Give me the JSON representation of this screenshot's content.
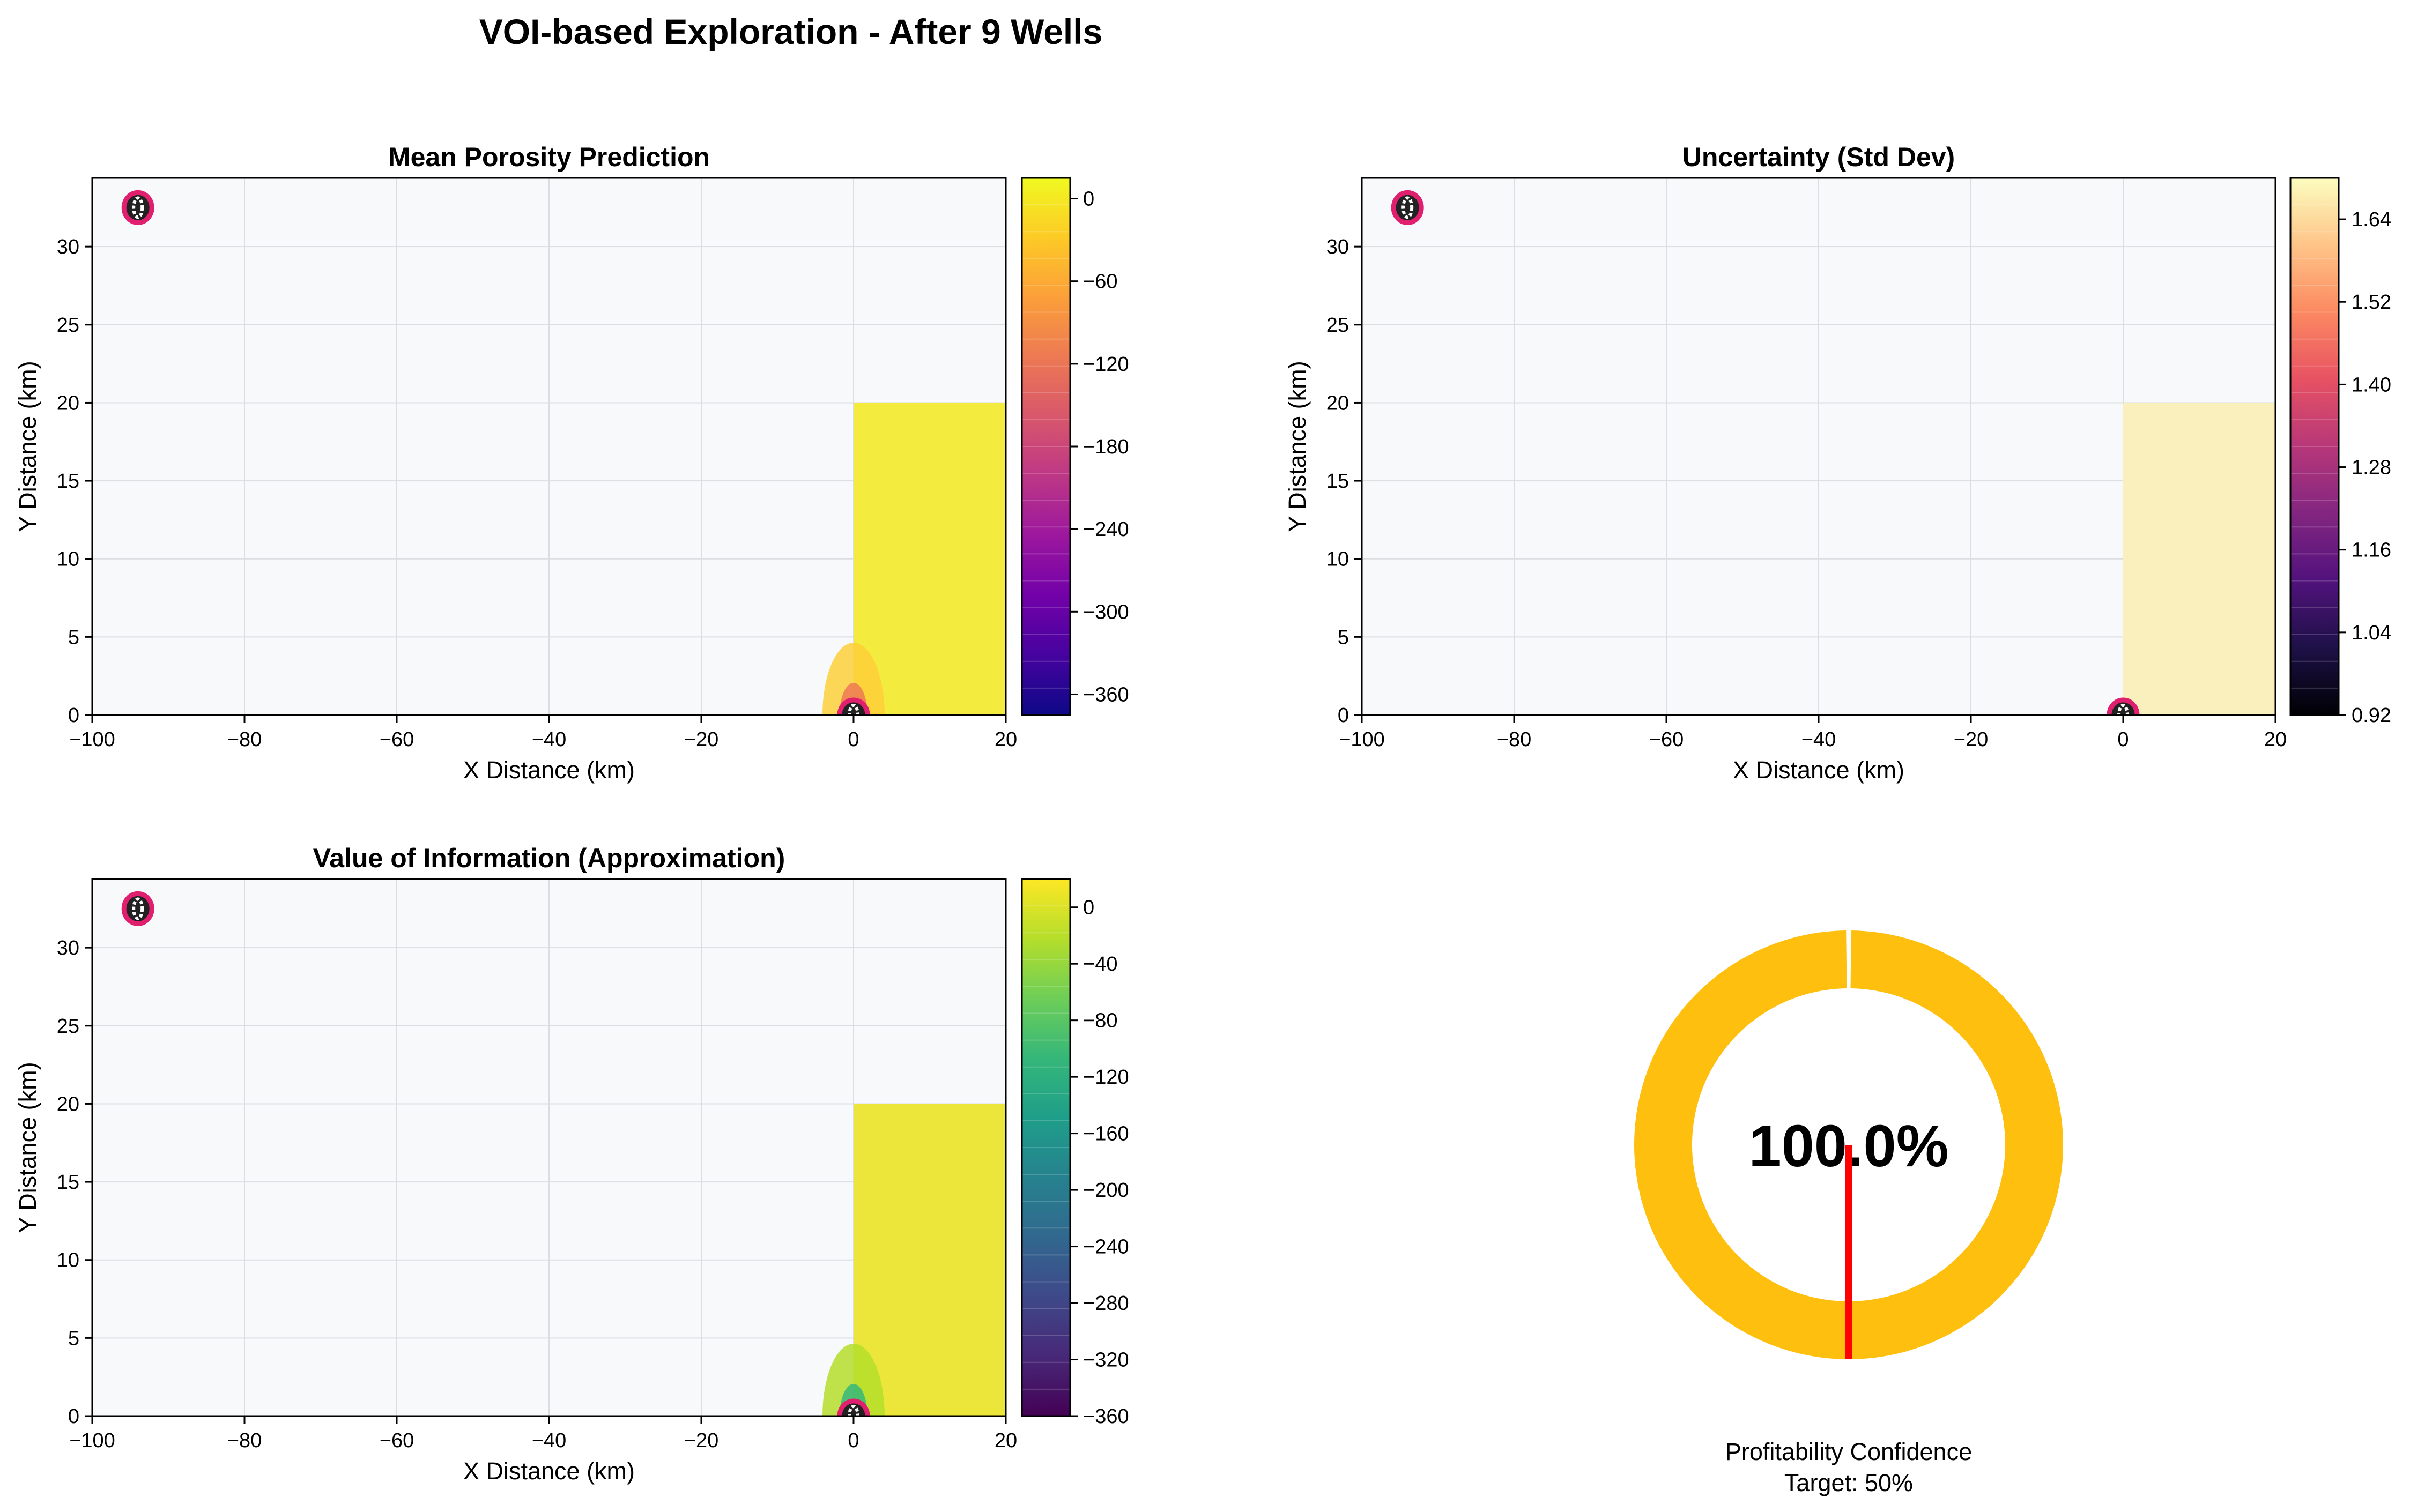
{
  "figure_title": "VOI-based Exploration - After 9 Wells",
  "colors": {
    "background": "#f8f9fb",
    "grid": "#dcdde1",
    "gauge_fill": "#ffbf0f",
    "target_line": "#ff0000",
    "well_marker_outline": "#e01f6e",
    "well_marker_fill": "#ffffff",
    "dark": "#222222"
  },
  "chart_data": [
    {
      "type": "heatmap",
      "title": "Mean Porosity Prediction",
      "xlabel": "X Distance (km)",
      "ylabel": "Y Distance (km)",
      "xlim": [
        -100,
        20
      ],
      "ylim": [
        0,
        34.4
      ],
      "xticks": [
        "−100",
        "−80",
        "−60",
        "−40",
        "−20",
        "0",
        "20"
      ],
      "yticks": [
        "0",
        "5",
        "10",
        "15",
        "20",
        "25",
        "30"
      ],
      "grid": true,
      "colormap": "plasma",
      "colorbar": {
        "range": [
          -375,
          15
        ],
        "ticks": [
          "0",
          "−60",
          "−120",
          "−180",
          "−240",
          "−300",
          "−360"
        ],
        "colors": [
          "#f0f921",
          "#fdca26",
          "#fb9f3a",
          "#ed7953",
          "#d8576b",
          "#bd3786",
          "#9c179e",
          "#7201a8",
          "#46039f",
          "#0d0887"
        ]
      },
      "filled_region": {
        "x": [
          0,
          20
        ],
        "y": [
          0,
          20
        ],
        "value": 0,
        "color": "#f3ec3a"
      },
      "near_zero_feature": {
        "x": 0,
        "y": 0,
        "value": -30,
        "color": "#fdd03a"
      },
      "wells": [
        {
          "x": -94,
          "y": 32.5
        },
        {
          "x": 0,
          "y": 0
        }
      ]
    },
    {
      "type": "heatmap",
      "title": "Uncertainty (Std Dev)",
      "xlabel": "X Distance (km)",
      "ylabel": "Y Distance (km)",
      "xlim": [
        -100,
        20
      ],
      "ylim": [
        0,
        34.4
      ],
      "xticks": [
        "−100",
        "−80",
        "−60",
        "−40",
        "−20",
        "0",
        "20"
      ],
      "yticks": [
        "0",
        "5",
        "10",
        "15",
        "20",
        "25",
        "30"
      ],
      "grid": true,
      "colormap": "magma",
      "colorbar": {
        "range": [
          0.92,
          1.7
        ],
        "ticks": [
          "0.92",
          "1.04",
          "1.16",
          "1.28",
          "1.40",
          "1.52",
          "1.64"
        ],
        "colors": [
          "#fcfdbf",
          "#fec488",
          "#fc8961",
          "#e75263",
          "#b73779",
          "#832681",
          "#51127c",
          "#1d1147",
          "#000004"
        ]
      },
      "filled_region": {
        "x": [
          0,
          20
        ],
        "y": [
          0,
          20
        ],
        "value": 1.68,
        "color": "#faf0bd"
      },
      "wells": [
        {
          "x": -94,
          "y": 32.5
        },
        {
          "x": 0,
          "y": 0
        }
      ]
    },
    {
      "type": "heatmap",
      "title": "Value of Information (Approximation)",
      "xlabel": "X Distance (km)",
      "ylabel": "Y Distance (km)",
      "xlim": [
        -100,
        20
      ],
      "ylim": [
        0,
        34.4
      ],
      "xticks": [
        "−100",
        "−80",
        "−60",
        "−40",
        "−20",
        "0",
        "20"
      ],
      "yticks": [
        "0",
        "5",
        "10",
        "15",
        "20",
        "25",
        "30"
      ],
      "grid": true,
      "colormap": "viridis",
      "colorbar": {
        "range": [
          -360,
          20
        ],
        "ticks": [
          "0",
          "−40",
          "−80",
          "−120",
          "−160",
          "−200",
          "−240",
          "−280",
          "−320",
          "−360"
        ],
        "colors": [
          "#fde725",
          "#b5de2b",
          "#6ece58",
          "#35b779",
          "#1f9e89",
          "#26828e",
          "#31688e",
          "#3e4989",
          "#482878",
          "#440154"
        ]
      },
      "filled_region": {
        "x": [
          0,
          20
        ],
        "y": [
          0,
          20
        ],
        "value": 0,
        "color": "#ece636"
      },
      "near_zero_feature": {
        "x": 0,
        "y": 0,
        "value": -80,
        "color": "#b5de2b"
      },
      "wells": [
        {
          "x": -94,
          "y": 32.5
        },
        {
          "x": 0,
          "y": 0
        }
      ]
    },
    {
      "type": "pie",
      "subtype": "donut-gauge",
      "center_label": "100.0%",
      "value": 100.0,
      "target": 50,
      "caption_line1": "Profitability Confidence",
      "caption_line2": "Target: 50%"
    }
  ]
}
